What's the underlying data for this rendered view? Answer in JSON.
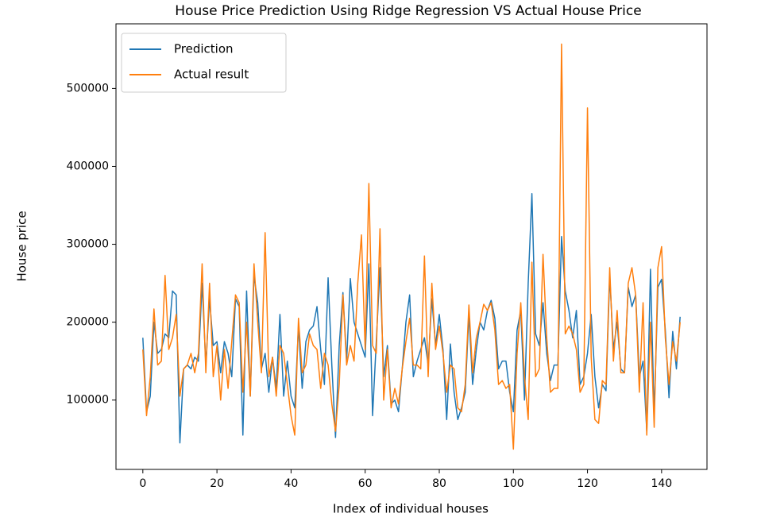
{
  "chart_data": {
    "type": "line",
    "title": "House Price Prediction Using Ridge Regression VS Actual House Price",
    "xlabel": "Index of individual houses",
    "ylabel": "House price",
    "legend": "upper left",
    "x": [
      0,
      1,
      2,
      3,
      4,
      5,
      6,
      7,
      8,
      9,
      10,
      11,
      12,
      13,
      14,
      15,
      16,
      17,
      18,
      19,
      20,
      21,
      22,
      23,
      24,
      25,
      26,
      27,
      28,
      29,
      30,
      31,
      32,
      33,
      34,
      35,
      36,
      37,
      38,
      39,
      40,
      41,
      42,
      43,
      44,
      45,
      46,
      47,
      48,
      49,
      50,
      51,
      52,
      53,
      54,
      55,
      56,
      57,
      58,
      59,
      60,
      61,
      62,
      63,
      64,
      65,
      66,
      67,
      68,
      69,
      70,
      71,
      72,
      73,
      74,
      75,
      76,
      77,
      78,
      79,
      80,
      81,
      82,
      83,
      84,
      85,
      86,
      87,
      88,
      89,
      90,
      91,
      92,
      93,
      94,
      95,
      96,
      97,
      98,
      99,
      100,
      101,
      102,
      103,
      104,
      105,
      106,
      107,
      108,
      109,
      110,
      111,
      112,
      113,
      114,
      115,
      116,
      117,
      118,
      119,
      120,
      121,
      122,
      123,
      124,
      125,
      126,
      127,
      128,
      129,
      130,
      131,
      132,
      133,
      134,
      135,
      136,
      137,
      138,
      139,
      140,
      141,
      142,
      143,
      144,
      145
    ],
    "series": [
      {
        "name": "Prediction",
        "color": "#1f77b4",
        "values": [
          180000,
          85000,
          105000,
          200000,
          160000,
          165000,
          185000,
          180000,
          240000,
          235000,
          45000,
          140000,
          145000,
          140000,
          155000,
          150000,
          250000,
          145000,
          230000,
          170000,
          175000,
          135000,
          175000,
          160000,
          130000,
          230000,
          220000,
          55000,
          240000,
          105000,
          260000,
          225000,
          140000,
          160000,
          110000,
          155000,
          115000,
          210000,
          105000,
          150000,
          105000,
          90000,
          195000,
          115000,
          175000,
          190000,
          195000,
          220000,
          165000,
          120000,
          257000,
          145000,
          52000,
          170000,
          238000,
          150000,
          256000,
          200000,
          185000,
          170000,
          155000,
          275000,
          80000,
          175000,
          270000,
          130000,
          170000,
          95000,
          100000,
          85000,
          140000,
          200000,
          235000,
          130000,
          150000,
          165000,
          180000,
          145000,
          230000,
          170000,
          210000,
          165000,
          75000,
          172000,
          110000,
          75000,
          90000,
          110000,
          210000,
          120000,
          165000,
          200000,
          190000,
          215000,
          228000,
          205000,
          140000,
          150000,
          150000,
          110000,
          85000,
          190000,
          215000,
          100000,
          250000,
          365000,
          185000,
          170000,
          225000,
          160000,
          125000,
          145000,
          145000,
          310000,
          240000,
          215000,
          180000,
          215000,
          120000,
          130000,
          160000,
          210000,
          130000,
          90000,
          120000,
          112000,
          260000,
          165000,
          200000,
          140000,
          135000,
          245000,
          220000,
          235000,
          130000,
          150000,
          60000,
          268000,
          80000,
          245000,
          255000,
          190000,
          103000,
          188000,
          140000,
          207000
        ]
      },
      {
        "name": "Actual result",
        "color": "#ff7f0e",
        "values": [
          165000,
          80000,
          130000,
          217000,
          145000,
          150000,
          260000,
          165000,
          180000,
          210000,
          105000,
          140000,
          145000,
          160000,
          135000,
          160000,
          275000,
          135000,
          250000,
          130000,
          170000,
          100000,
          165000,
          115000,
          175000,
          235000,
          225000,
          110000,
          200000,
          105000,
          275000,
          200000,
          135000,
          315000,
          130000,
          155000,
          105000,
          170000,
          160000,
          120000,
          80000,
          55000,
          205000,
          135000,
          145000,
          185000,
          170000,
          165000,
          115000,
          160000,
          145000,
          95000,
          60000,
          120000,
          235000,
          145000,
          170000,
          150000,
          250000,
          312000,
          165000,
          378000,
          170000,
          160000,
          320000,
          100000,
          165000,
          90000,
          115000,
          95000,
          140000,
          175000,
          205000,
          145000,
          145000,
          140000,
          285000,
          130000,
          250000,
          165000,
          195000,
          160000,
          110000,
          145000,
          140000,
          90000,
          85000,
          120000,
          222000,
          135000,
          180000,
          200000,
          223000,
          215000,
          225000,
          190000,
          120000,
          125000,
          115000,
          120000,
          37000,
          160000,
          225000,
          130000,
          75000,
          277000,
          130000,
          140000,
          287000,
          180000,
          110000,
          115000,
          115000,
          557000,
          185000,
          195000,
          185000,
          165000,
          110000,
          120000,
          475000,
          155000,
          75000,
          70000,
          125000,
          120000,
          270000,
          150000,
          215000,
          135000,
          135000,
          250000,
          270000,
          235000,
          110000,
          225000,
          55000,
          200000,
          65000,
          270000,
          297000,
          180000,
          120000,
          175000,
          150000,
          200000
        ]
      }
    ],
    "xlim": [
      -7.25,
      152.25
    ],
    "ylim": [
      11000,
      583000
    ],
    "xticks": [
      0,
      20,
      40,
      60,
      80,
      100,
      120,
      140
    ],
    "yticks": [
      100000,
      200000,
      300000,
      400000,
      500000
    ]
  }
}
